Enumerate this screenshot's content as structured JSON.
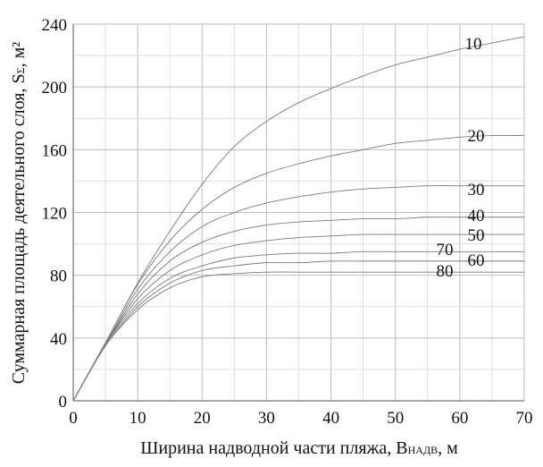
{
  "chart_data": {
    "type": "line",
    "xlabel": {
      "main": "Ширина надводной части пляжа, B",
      "sub": "НАДВ",
      "tail": ", м"
    },
    "ylabel": {
      "main": "Суммарная площадь деятельного слоя, S",
      "sub": "Σ",
      "tail": ", м²"
    },
    "xlim": [
      0,
      70
    ],
    "ylim": [
      0,
      240
    ],
    "xticks": [
      0,
      10,
      20,
      30,
      40,
      50,
      60,
      70
    ],
    "yticks": [
      0,
      40,
      80,
      120,
      160,
      200,
      240
    ],
    "grid": true,
    "x": [
      0,
      5,
      10,
      15,
      20,
      25,
      30,
      35,
      40,
      45,
      50,
      55,
      60,
      65,
      70
    ],
    "series": [
      {
        "name": "10",
        "values": [
          0,
          37,
          75,
          108,
          138,
          162,
          178,
          190,
          199,
          207,
          214,
          219,
          224,
          228,
          232
        ]
      },
      {
        "name": "20",
        "values": [
          0,
          37,
          74,
          102,
          122,
          136,
          145,
          151,
          156,
          160,
          164,
          166,
          168,
          169,
          169
        ]
      },
      {
        "name": "30",
        "values": [
          0,
          36,
          71,
          95,
          111,
          120,
          126,
          130,
          133,
          135,
          136,
          137,
          137,
          137,
          137
        ]
      },
      {
        "name": "40",
        "values": [
          0,
          36,
          68,
          89,
          101,
          108,
          112,
          114,
          115,
          116,
          116,
          117,
          117,
          117,
          117
        ]
      },
      {
        "name": "50",
        "values": [
          0,
          36,
          65,
          83,
          93,
          99,
          102,
          104,
          105,
          106,
          106,
          106,
          106,
          106,
          106
        ]
      },
      {
        "name": "60",
        "values": [
          0,
          36,
          62,
          78,
          86,
          91,
          93,
          94,
          94,
          95,
          95,
          95,
          95,
          95,
          95
        ]
      },
      {
        "name": "70",
        "values": [
          0,
          35,
          60,
          75,
          83,
          86,
          88,
          88,
          89,
          89,
          89,
          89,
          89,
          89,
          89
        ]
      },
      {
        "name": "80",
        "values": [
          0,
          35,
          58,
          72,
          79,
          81,
          82,
          82,
          82,
          82,
          82,
          82,
          82,
          82,
          82
        ]
      }
    ]
  }
}
